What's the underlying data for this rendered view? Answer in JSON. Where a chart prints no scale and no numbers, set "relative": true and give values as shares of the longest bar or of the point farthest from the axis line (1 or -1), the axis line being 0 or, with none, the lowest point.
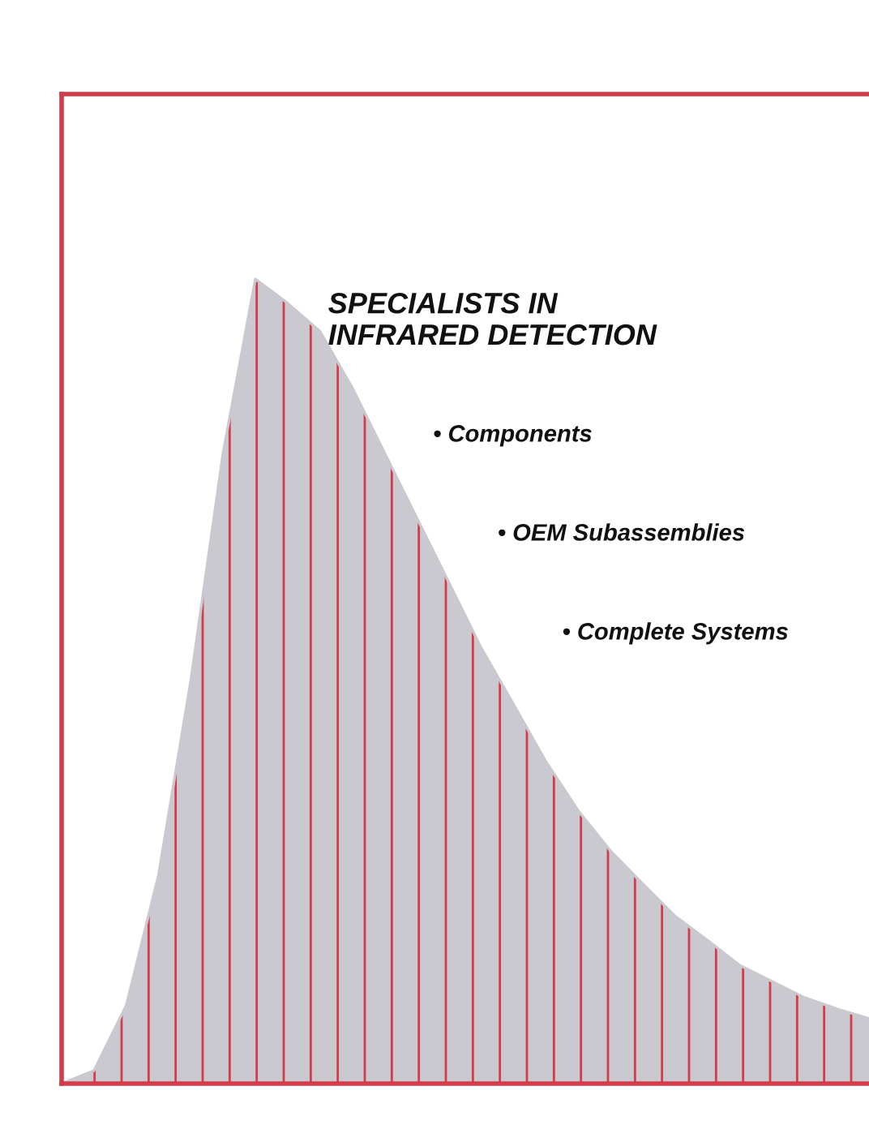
{
  "chart_data": {
    "type": "area",
    "relative": true,
    "tick_labels": false,
    "title": "SPECIALISTS IN\nINFRARED DETECTION",
    "annotations": [
      "• Components",
      "• OEM Subassemblies",
      "• Complete Systems"
    ],
    "categories": [
      null,
      null,
      null,
      null,
      null,
      null,
      null,
      null,
      null,
      null,
      null,
      null,
      null,
      null,
      null,
      null,
      null,
      null,
      null,
      null,
      null,
      null,
      null,
      null,
      null,
      null
    ],
    "series": [
      {
        "color": "#c9c9cf",
        "values": [
          0,
          0.016,
          0.097,
          0.259,
          0.501,
          0.784,
          1.0,
          0.97,
          0.935,
          0.865,
          0.784,
          0.703,
          0.622,
          0.541,
          0.471,
          0.4,
          0.339,
          0.289,
          0.248,
          0.208,
          0.178,
          0.147,
          0.127,
          0.107,
          0.093,
          0.081
        ]
      }
    ]
  }
}
